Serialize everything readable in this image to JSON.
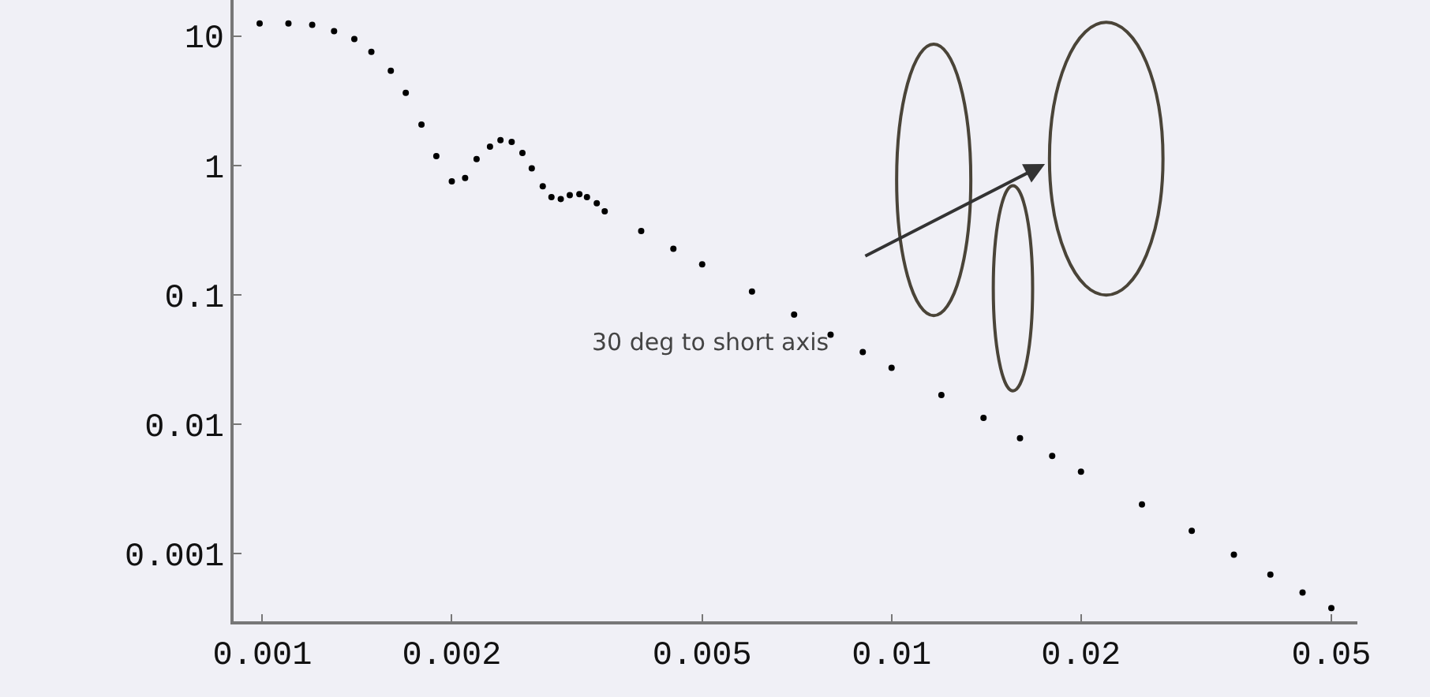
{
  "chart_data": {
    "type": "scatter",
    "x": [
      0.00099,
      0.0011,
      0.0012,
      0.0013,
      0.0014,
      0.00149,
      0.0016,
      0.00169,
      0.00179,
      0.00189,
      0.002,
      0.0021,
      0.00219,
      0.0023,
      0.00239,
      0.00249,
      0.00259,
      0.00268,
      0.00279,
      0.00288,
      0.00298,
      0.00308,
      0.00319,
      0.00328,
      0.0034,
      0.0035,
      0.004,
      0.0045,
      0.005,
      0.006,
      0.007,
      0.008,
      0.009,
      0.01,
      0.012,
      0.014,
      0.016,
      0.018,
      0.02,
      0.025,
      0.03,
      0.035,
      0.04,
      0.045,
      0.05
    ],
    "values": [
      12.5,
      12.5,
      12.2,
      10.9,
      9.5,
      7.55,
      5.4,
      3.64,
      2.07,
      1.18,
      0.755,
      0.8,
      1.12,
      1.4,
      1.57,
      1.52,
      1.25,
      0.95,
      0.69,
      0.57,
      0.55,
      0.59,
      0.6,
      0.57,
      0.51,
      0.443,
      0.311,
      0.227,
      0.172,
      0.106,
      0.0703,
      0.0493,
      0.0361,
      0.0273,
      0.0168,
      0.0112,
      0.0078,
      0.0057,
      0.0043,
      0.0024,
      0.0015,
      0.00098,
      0.00069,
      0.0005,
      0.00038
    ],
    "color": "#000000",
    "marker": "circle",
    "log": "xy",
    "grid": false,
    "xlim": [
      0.0009,
      0.055
    ],
    "ylim": [
      0.0003,
      19
    ],
    "xticks": [
      0.001,
      0.002,
      0.005,
      0.01,
      0.02,
      0.05
    ],
    "yticks": [
      0.001,
      0.01,
      0.1,
      1,
      10
    ],
    "annotations": [
      "30 deg to short axis"
    ]
  }
}
